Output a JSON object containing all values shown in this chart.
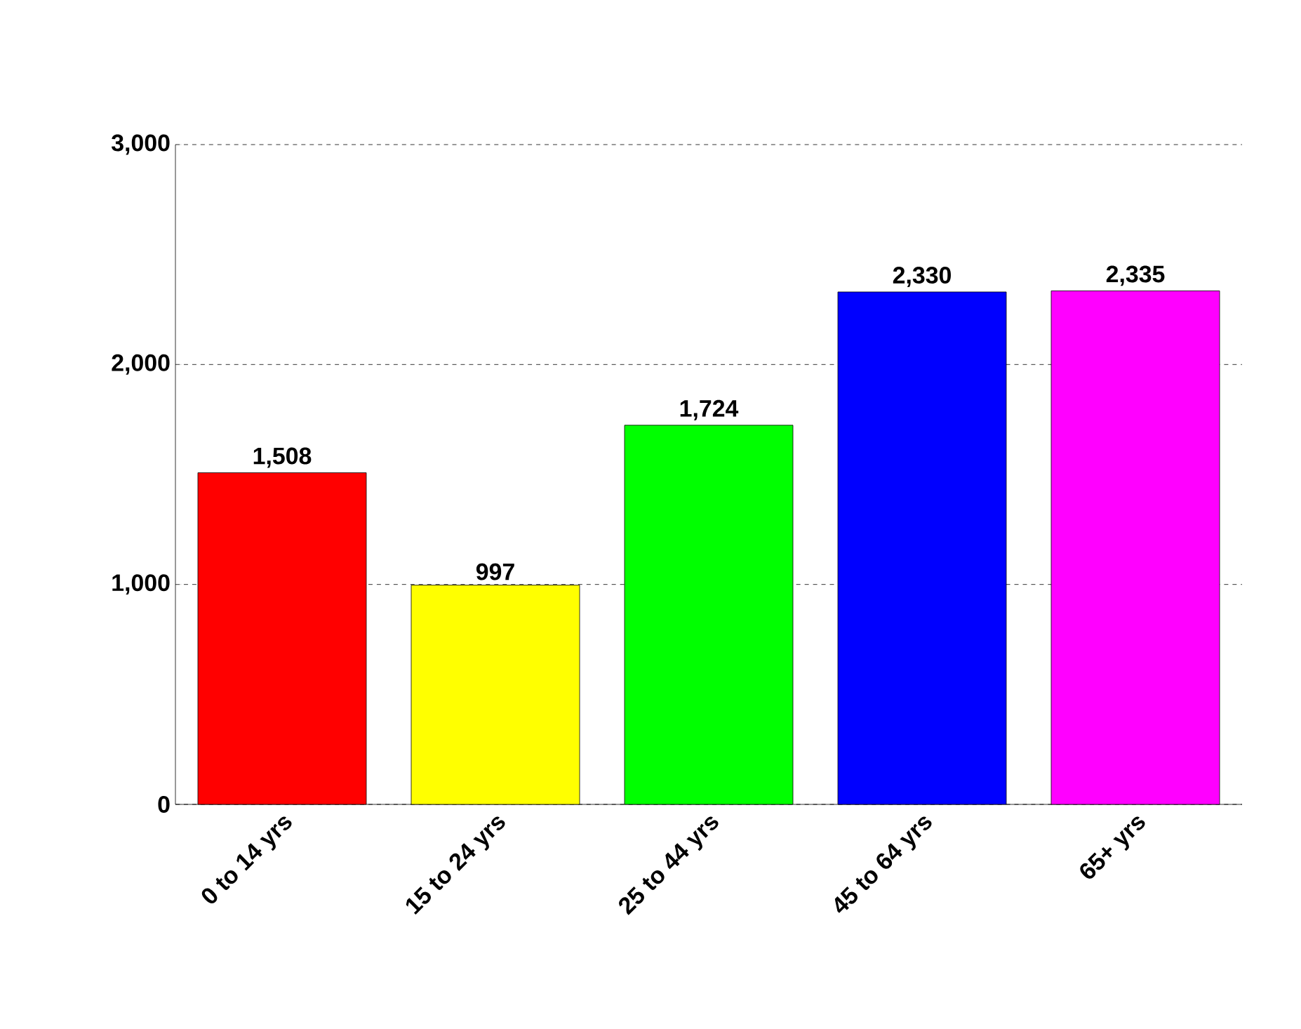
{
  "chart_data": {
    "type": "bar",
    "categories": [
      "0 to 14 yrs",
      "15 to 24 yrs",
      "25 to 44 yrs",
      "45 to 64 yrs",
      "65+ yrs"
    ],
    "values": [
      1508,
      997,
      1724,
      2330,
      2335
    ],
    "colors": [
      "#ff0000",
      "#ffff00",
      "#00ff00",
      "#0000ff",
      "#ff00ff"
    ],
    "value_labels": [
      "1,508",
      "997",
      "1,724",
      "2,330",
      "2,335"
    ],
    "ylim": [
      0,
      3000
    ],
    "yticks": [
      {
        "value": 0,
        "label": "0"
      },
      {
        "value": 1000,
        "label": "1,000"
      },
      {
        "value": 2000,
        "label": "2,000"
      },
      {
        "value": 3000,
        "label": "3,000"
      }
    ],
    "grid": "y"
  }
}
